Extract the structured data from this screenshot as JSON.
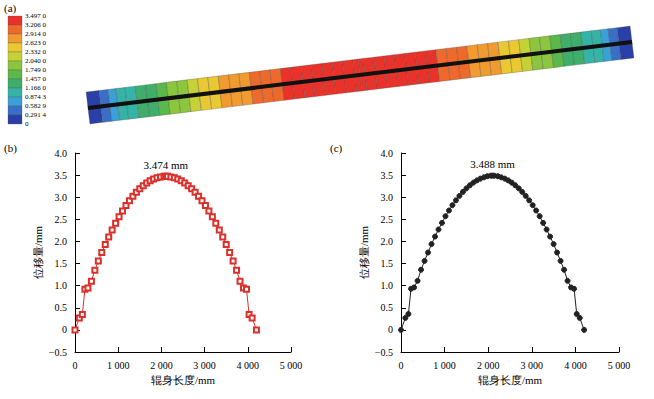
{
  "chart_data": [
    {
      "type": "contour",
      "label": "(a)",
      "levels": [
        {
          "value": 3.497,
          "label": "3.497 0"
        },
        {
          "value": 3.206,
          "label": "3.206 0"
        },
        {
          "value": 2.914,
          "label": "2.914 0"
        },
        {
          "value": 2.623,
          "label": "2.623 0"
        },
        {
          "value": 2.332,
          "label": "2.332 0"
        },
        {
          "value": 2.04,
          "label": "2.040 0"
        },
        {
          "value": 1.749,
          "label": "1.749 0"
        },
        {
          "value": 1.457,
          "label": "1.457 0"
        },
        {
          "value": 1.166,
          "label": "1.166 0"
        },
        {
          "value": 0.8743,
          "label": "0.874 3"
        },
        {
          "value": 0.5829,
          "label": "0.582 9"
        },
        {
          "value": 0.2914,
          "label": "0.291 4"
        },
        0
      ],
      "colors": [
        "#e8322a",
        "#ee6a2c",
        "#f09a30",
        "#e9c832",
        "#c4d236",
        "#8cc63e",
        "#5bb84a",
        "#3fae6a",
        "#35b3a6",
        "#3aa0d8",
        "#3a6fc8",
        "#2b3fa8"
      ]
    },
    {
      "type": "line",
      "label": "(b)",
      "xlabel": "辊身长度/mm",
      "ylabel": "位移量/mm",
      "x": [
        0,
        100,
        170,
        230,
        300,
        380,
        460,
        540,
        620,
        700,
        780,
        860,
        940,
        1020,
        1100,
        1180,
        1260,
        1340,
        1420,
        1500,
        1580,
        1660,
        1740,
        1820,
        1900,
        1980,
        2060,
        2100,
        2140,
        2220,
        2300,
        2380,
        2460,
        2540,
        2620,
        2700,
        2780,
        2860,
        2940,
        3020,
        3100,
        3180,
        3260,
        3340,
        3420,
        3500,
        3580,
        3660,
        3740,
        3820,
        3900,
        3970,
        4030,
        4100,
        4200
      ],
      "series": [
        {
          "name": "(b)",
          "color": "#d9302c",
          "marker": "open_square",
          "values": [
            0,
            0.27,
            0.35,
            0.92,
            0.95,
            1.1,
            1.35,
            1.56,
            1.75,
            1.93,
            2.1,
            2.26,
            2.41,
            2.56,
            2.69,
            2.81,
            2.92,
            3.02,
            3.11,
            3.19,
            3.26,
            3.32,
            3.37,
            3.41,
            3.44,
            3.46,
            3.473,
            3.474,
            3.473,
            3.46,
            3.44,
            3.41,
            3.37,
            3.32,
            3.26,
            3.19,
            3.11,
            3.02,
            2.92,
            2.81,
            2.69,
            2.56,
            2.41,
            2.26,
            2.1,
            1.93,
            1.75,
            1.56,
            1.35,
            1.1,
            0.95,
            0.92,
            0.35,
            0.27,
            0
          ]
        }
      ],
      "annotations": [
        {
          "text": "3.474 mm",
          "x": 2100,
          "y": 3.474
        }
      ],
      "xlim": [
        0,
        5000
      ],
      "xticks": [
        0,
        {
          "value": 1000,
          "label": "1 000"
        },
        {
          "value": 2000,
          "label": "2 000"
        },
        {
          "value": 3000,
          "label": "3 000"
        },
        {
          "value": 4000,
          "label": "4 000"
        },
        {
          "value": 5000,
          "label": "5 000"
        }
      ],
      "ylim": [
        -0.5,
        4.0
      ],
      "yticks": [
        {
          "value": -0.5,
          "label": "−0.5"
        },
        0,
        0.5,
        {
          "value": 1.0,
          "label": "1.0"
        },
        1.5,
        {
          "value": 2.0,
          "label": "2.0"
        },
        2.5,
        {
          "value": 3.0,
          "label": "3.0"
        },
        3.5,
        {
          "value": 4.0,
          "label": "4.0"
        }
      ],
      "grid": false
    },
    {
      "type": "line",
      "label": "(c)",
      "xlabel": "辊身长度/mm",
      "ylabel": "位移量/mm",
      "x": [
        0,
        100,
        170,
        230,
        300,
        380,
        460,
        540,
        620,
        700,
        780,
        860,
        940,
        1020,
        1100,
        1180,
        1260,
        1340,
        1420,
        1500,
        1580,
        1660,
        1740,
        1820,
        1900,
        1980,
        2060,
        2100,
        2140,
        2220,
        2300,
        2380,
        2460,
        2540,
        2620,
        2700,
        2780,
        2860,
        2940,
        3020,
        3100,
        3180,
        3260,
        3340,
        3420,
        3500,
        3580,
        3660,
        3740,
        3820,
        3900,
        3970,
        4030,
        4100,
        4200
      ],
      "series": [
        {
          "name": "(c)",
          "color": "#222222",
          "marker": "circle",
          "values": [
            0,
            0.27,
            0.36,
            0.93,
            0.96,
            1.11,
            1.36,
            1.56,
            1.75,
            1.94,
            2.11,
            2.27,
            2.42,
            2.57,
            2.7,
            2.82,
            2.93,
            3.03,
            3.12,
            3.2,
            3.27,
            3.33,
            3.38,
            3.42,
            3.45,
            3.475,
            3.487,
            3.488,
            3.487,
            3.475,
            3.45,
            3.42,
            3.38,
            3.33,
            3.27,
            3.2,
            3.12,
            3.03,
            2.93,
            2.82,
            2.7,
            2.57,
            2.42,
            2.27,
            2.11,
            1.94,
            1.75,
            1.56,
            1.36,
            1.11,
            0.96,
            0.93,
            0.36,
            0.27,
            0
          ]
        }
      ],
      "annotations": [
        {
          "text": "3.488 mm",
          "x": 2100,
          "y": 3.488
        }
      ],
      "xlim": [
        0,
        5000
      ],
      "xticks": [
        0,
        {
          "value": 1000,
          "label": "1 000"
        },
        {
          "value": 2000,
          "label": "2 000"
        },
        {
          "value": 3000,
          "label": "3 000"
        },
        {
          "value": 4000,
          "label": "4 000"
        },
        {
          "value": 5000,
          "label": "5 000"
        }
      ],
      "ylim": [
        -0.5,
        4.0
      ],
      "yticks": [
        {
          "value": -0.5,
          "label": "−0.5"
        },
        0,
        0.5,
        {
          "value": 1.0,
          "label": "1.0"
        },
        1.5,
        {
          "value": 2.0,
          "label": "2.0"
        },
        2.5,
        {
          "value": 3.0,
          "label": "3.0"
        },
        3.5,
        {
          "value": 4.0,
          "label": "4.0"
        }
      ],
      "grid": false
    }
  ]
}
